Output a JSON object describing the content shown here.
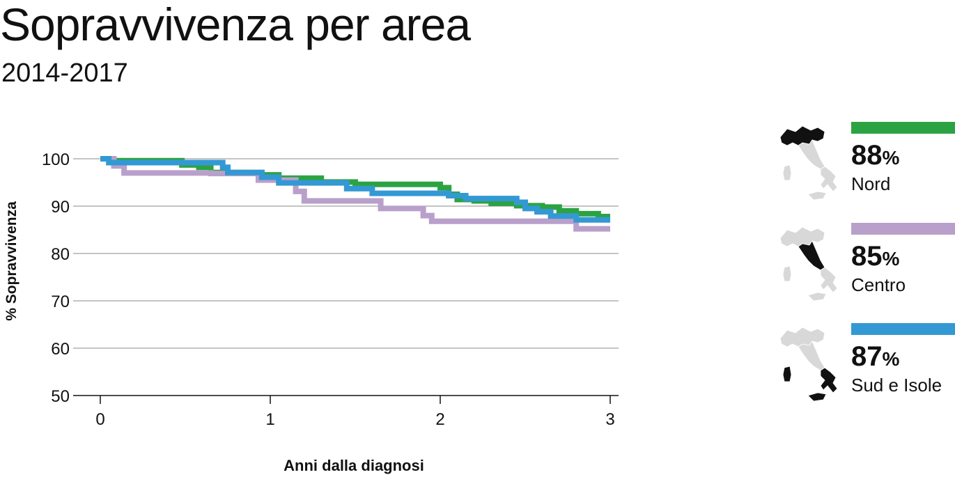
{
  "header": {
    "title": "Sopravvivenza per area",
    "subtitle": "2014-2017"
  },
  "chart_data": {
    "type": "line",
    "step": true,
    "title": "Sopravvivenza per area",
    "subtitle": "2014-2017",
    "xlabel": "Anni dalla diagnosi",
    "ylabel": "% Sopravvivenza",
    "xlim": [
      0,
      3
    ],
    "ylim": [
      50,
      100
    ],
    "xticks": [
      0,
      1,
      2,
      3
    ],
    "yticks": [
      100,
      90,
      80,
      70,
      60,
      50
    ],
    "grid": "horizontal",
    "series": [
      {
        "name": "Nord",
        "color": "#2ca343",
        "x": [
          0,
          0.06,
          0.48,
          0.58,
          0.65,
          0.95,
          1.05,
          1.3,
          1.5,
          2.0,
          2.05,
          2.1,
          2.2,
          2.3,
          2.45,
          2.6,
          2.7,
          2.8,
          2.93,
          3.0
        ],
        "y": [
          100,
          99.6,
          98.7,
          98.2,
          97.1,
          96.6,
          95.9,
          95.1,
          94.6,
          93.9,
          92.5,
          91.4,
          91.1,
          90.6,
          90.1,
          89.8,
          89.0,
          88.4,
          87.8,
          87.8
        ]
      },
      {
        "name": "Centro",
        "color": "#b9a0cb",
        "x": [
          0,
          0.08,
          0.14,
          0.65,
          0.93,
          1.15,
          1.2,
          1.65,
          1.9,
          1.95,
          2.8,
          3.0
        ],
        "y": [
          100,
          98.5,
          97.0,
          96.9,
          95.5,
          93.1,
          91.1,
          89.5,
          88.0,
          86.8,
          85.2,
          85.2
        ]
      },
      {
        "name": "Sud e Isole",
        "color": "#3399d4",
        "x": [
          0,
          0.05,
          0.72,
          0.75,
          0.95,
          1.05,
          1.45,
          1.6,
          2.05,
          2.15,
          2.45,
          2.5,
          2.57,
          2.65,
          2.8,
          3.0
        ],
        "y": [
          100,
          99.2,
          98.2,
          97.1,
          96.1,
          94.9,
          93.7,
          92.7,
          92.2,
          91.6,
          90.8,
          89.5,
          88.8,
          87.9,
          87.1,
          87.1
        ]
      }
    ]
  },
  "legend": [
    {
      "pct": "88",
      "pct_symbol": "%",
      "name": "Nord",
      "color": "#2ca343",
      "highlight": "north"
    },
    {
      "pct": "85",
      "pct_symbol": "%",
      "name": "Centro",
      "color": "#b9a0cb",
      "highlight": "center"
    },
    {
      "pct": "87",
      "pct_symbol": "%",
      "name": "Sud e Isole",
      "color": "#3399d4",
      "highlight": "south"
    }
  ],
  "colors": {
    "map_base": "#d8d8d8",
    "map_highlight": "#111111",
    "grid": "#8a8a8a",
    "axis": "#111111"
  }
}
